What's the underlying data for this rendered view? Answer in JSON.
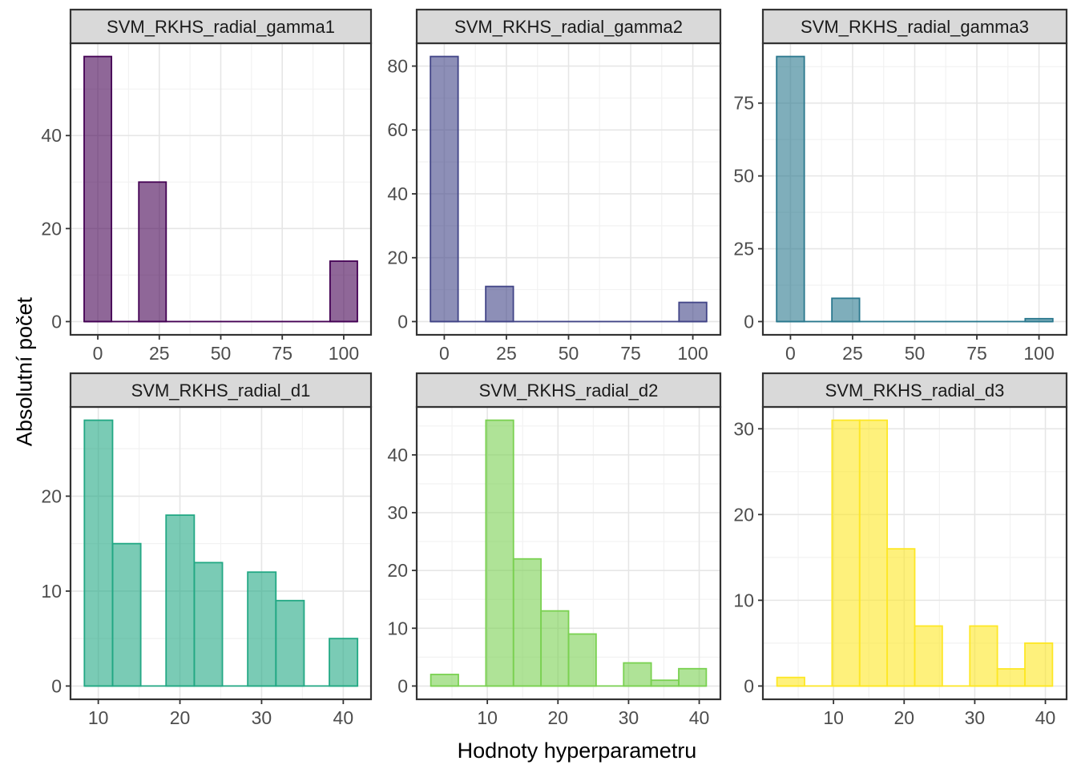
{
  "figure": {
    "y_axis_label": "Absolutní počet",
    "x_axis_label": "Hodnoty hyperparametru",
    "background_color": "#FFFFFF",
    "strip_bg_color": "#D9D9D9",
    "strip_text_color": "#1A1A1A",
    "tick_text_color": "#4D4D4D",
    "axis_title_color": "#000000",
    "panel_border_color": "#333333",
    "tick_mark_color": "#333333",
    "grid_major_color": "#E6E6E6",
    "grid_minor_color": "#F2F2F2"
  },
  "chart_data": [
    {
      "type": "bar",
      "subtype": "histogram",
      "title": "SVM_RKHS_radial_gamma1",
      "color": "#440154",
      "fill": "rgba(68,1,84,0.6)",
      "x_domain": [
        -11.1,
        111.1
      ],
      "y_domain": [
        -2.85,
        59.85
      ],
      "x_ticks": [
        0,
        25,
        50,
        75,
        100
      ],
      "y_ticks": [
        0,
        20,
        40
      ],
      "baseline_span": [
        -5.56,
        105.56
      ],
      "bars": [
        {
          "x0": -5.56,
          "x1": 5.56,
          "count": 57
        },
        {
          "x0": 16.67,
          "x1": 27.78,
          "count": 30
        },
        {
          "x0": 94.44,
          "x1": 105.56,
          "count": 13
        }
      ]
    },
    {
      "type": "bar",
      "subtype": "histogram",
      "title": "SVM_RKHS_radial_gamma2",
      "color": "#414487",
      "fill": "rgba(65,68,135,0.6)",
      "x_domain": [
        -11.1,
        111.1
      ],
      "y_domain": [
        -4.15,
        87.15
      ],
      "x_ticks": [
        0,
        25,
        50,
        75,
        100
      ],
      "y_ticks": [
        0,
        20,
        40,
        60,
        80
      ],
      "baseline_span": [
        -5.56,
        105.56
      ],
      "bars": [
        {
          "x0": -5.56,
          "x1": 5.56,
          "count": 83
        },
        {
          "x0": 16.67,
          "x1": 27.78,
          "count": 11
        },
        {
          "x0": 94.44,
          "x1": 105.56,
          "count": 6
        }
      ]
    },
    {
      "type": "bar",
      "subtype": "histogram",
      "title": "SVM_RKHS_radial_gamma3",
      "color": "#2A788E",
      "fill": "rgba(42,120,142,0.6)",
      "x_domain": [
        -11.1,
        111.1
      ],
      "y_domain": [
        -4.55,
        95.55
      ],
      "x_ticks": [
        0,
        25,
        50,
        75,
        100
      ],
      "y_ticks": [
        0,
        25,
        50,
        75
      ],
      "baseline_span": [
        -5.56,
        105.56
      ],
      "bars": [
        {
          "x0": -5.56,
          "x1": 5.56,
          "count": 91
        },
        {
          "x0": 16.67,
          "x1": 27.78,
          "count": 8
        },
        {
          "x0": 94.44,
          "x1": 105.56,
          "count": 1
        }
      ]
    },
    {
      "type": "bar",
      "subtype": "histogram",
      "title": "SVM_RKHS_radial_d1",
      "color": "#22A884",
      "fill": "rgba(34,168,132,0.6)",
      "x_domain": [
        6.6,
        43.4
      ],
      "y_domain": [
        -1.4,
        29.4
      ],
      "x_ticks": [
        10,
        20,
        30,
        40
      ],
      "y_ticks": [
        0,
        10,
        20
      ],
      "baseline_span": [
        8.3,
        41.75
      ],
      "bars": [
        {
          "x0": 8.3,
          "x1": 11.75,
          "count": 28
        },
        {
          "x0": 11.75,
          "x1": 15.2,
          "count": 15
        },
        {
          "x0": 18.3,
          "x1": 21.75,
          "count": 18
        },
        {
          "x0": 21.75,
          "x1": 25.2,
          "count": 13
        },
        {
          "x0": 28.3,
          "x1": 31.75,
          "count": 12
        },
        {
          "x0": 31.75,
          "x1": 35.2,
          "count": 9
        },
        {
          "x0": 38.3,
          "x1": 41.75,
          "count": 5
        }
      ]
    },
    {
      "type": "bar",
      "subtype": "histogram",
      "title": "SVM_RKHS_radial_d2",
      "color": "#7AD151",
      "fill": "rgba(122,209,81,0.6)",
      "x_domain": [
        0,
        43
      ],
      "y_domain": [
        -2.3,
        48.3
      ],
      "x_ticks": [
        10,
        20,
        30,
        40
      ],
      "y_ticks": [
        0,
        10,
        20,
        30,
        40
      ],
      "baseline_span": [
        2.0,
        41.0
      ],
      "bars": [
        {
          "x0": 2.0,
          "x1": 5.9,
          "count": 2
        },
        {
          "x0": 9.8,
          "x1": 13.7,
          "count": 46
        },
        {
          "x0": 13.7,
          "x1": 17.6,
          "count": 22
        },
        {
          "x0": 17.6,
          "x1": 21.5,
          "count": 13
        },
        {
          "x0": 21.5,
          "x1": 25.4,
          "count": 9
        },
        {
          "x0": 29.3,
          "x1": 33.2,
          "count": 4
        },
        {
          "x0": 33.2,
          "x1": 37.1,
          "count": 1
        },
        {
          "x0": 37.1,
          "x1": 41.0,
          "count": 3
        }
      ]
    },
    {
      "type": "bar",
      "subtype": "histogram",
      "title": "SVM_RKHS_radial_d3",
      "color": "#FDE725",
      "fill": "rgba(253,231,37,0.6)",
      "x_domain": [
        0,
        43
      ],
      "y_domain": [
        -1.55,
        32.55
      ],
      "x_ticks": [
        10,
        20,
        30,
        40
      ],
      "y_ticks": [
        0,
        10,
        20,
        30
      ],
      "baseline_span": [
        2.0,
        41.0
      ],
      "bars": [
        {
          "x0": 2.0,
          "x1": 5.9,
          "count": 1
        },
        {
          "x0": 9.8,
          "x1": 13.7,
          "count": 31
        },
        {
          "x0": 13.7,
          "x1": 17.6,
          "count": 31
        },
        {
          "x0": 17.6,
          "x1": 21.5,
          "count": 16
        },
        {
          "x0": 21.5,
          "x1": 25.4,
          "count": 7
        },
        {
          "x0": 29.3,
          "x1": 33.2,
          "count": 7
        },
        {
          "x0": 33.2,
          "x1": 37.1,
          "count": 2
        },
        {
          "x0": 37.1,
          "x1": 41.0,
          "count": 5
        }
      ]
    }
  ]
}
